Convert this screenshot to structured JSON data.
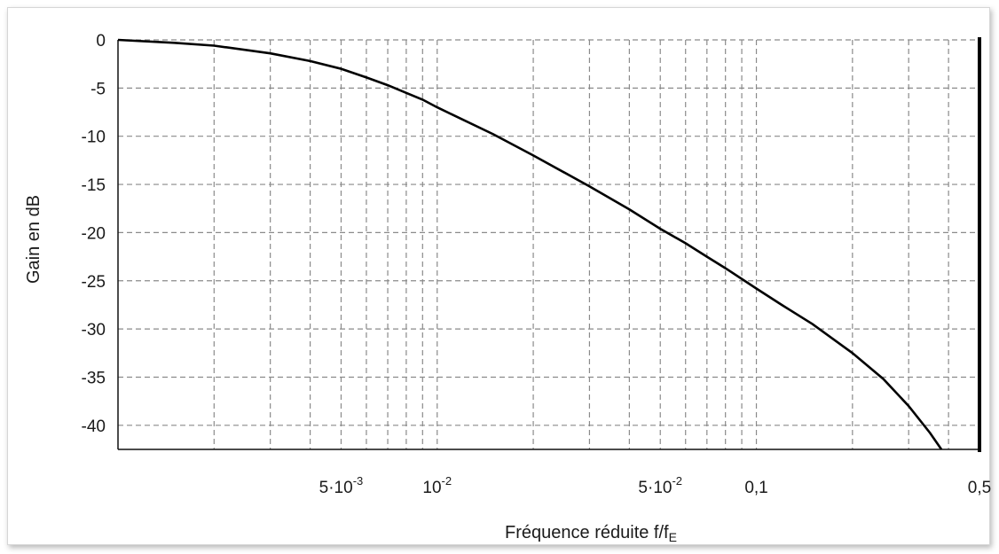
{
  "chart_data": {
    "type": "line",
    "xlabel_main": "Fréquence réduite f/f",
    "xlabel_sub": "E",
    "ylabel": "Gain en dB",
    "xscale": "log",
    "xlim": [
      0.001,
      0.5
    ],
    "ylim": [
      -42.5,
      0
    ],
    "grid": true,
    "y_ticks": [
      "0",
      "-5",
      "-10",
      "-15",
      "-20",
      "-25",
      "-30",
      "-35",
      "-40"
    ],
    "y_tick_values": [
      0,
      -5,
      -10,
      -15,
      -20,
      -25,
      -30,
      -35,
      -40
    ],
    "x_tick_labels": [
      {
        "value": 0.005,
        "base": "5·10",
        "exp": "-3"
      },
      {
        "value": 0.01,
        "base": "10",
        "exp": "-2"
      },
      {
        "value": 0.05,
        "base": "5·10",
        "exp": "-2"
      },
      {
        "value": 0.1,
        "base": "0,1",
        "exp": ""
      },
      {
        "value": 0.5,
        "base": "0,5",
        "exp": ""
      }
    ],
    "x_grid_values": [
      0.002,
      0.003,
      0.004,
      0.005,
      0.006,
      0.007,
      0.008,
      0.009,
      0.01,
      0.02,
      0.03,
      0.04,
      0.05,
      0.06,
      0.07,
      0.08,
      0.09,
      0.1,
      0.2,
      0.3,
      0.4
    ],
    "series": [
      {
        "x": [
          0.001,
          0.0015,
          0.002,
          0.003,
          0.004,
          0.005,
          0.006,
          0.007,
          0.008,
          0.009,
          0.01,
          0.015,
          0.02,
          0.03,
          0.04,
          0.05,
          0.06,
          0.07,
          0.08,
          0.1,
          0.12,
          0.15,
          0.2,
          0.25,
          0.3,
          0.35,
          0.38
        ],
        "y": [
          0,
          -0.3,
          -0.6,
          -1.4,
          -2.2,
          -3.0,
          -3.9,
          -4.7,
          -5.5,
          -6.2,
          -7.0,
          -9.8,
          -12.0,
          -15.2,
          -17.6,
          -19.6,
          -21.1,
          -22.5,
          -23.7,
          -25.8,
          -27.5,
          -29.5,
          -32.5,
          -35.2,
          -38.0,
          -40.8,
          -42.5
        ]
      }
    ]
  }
}
